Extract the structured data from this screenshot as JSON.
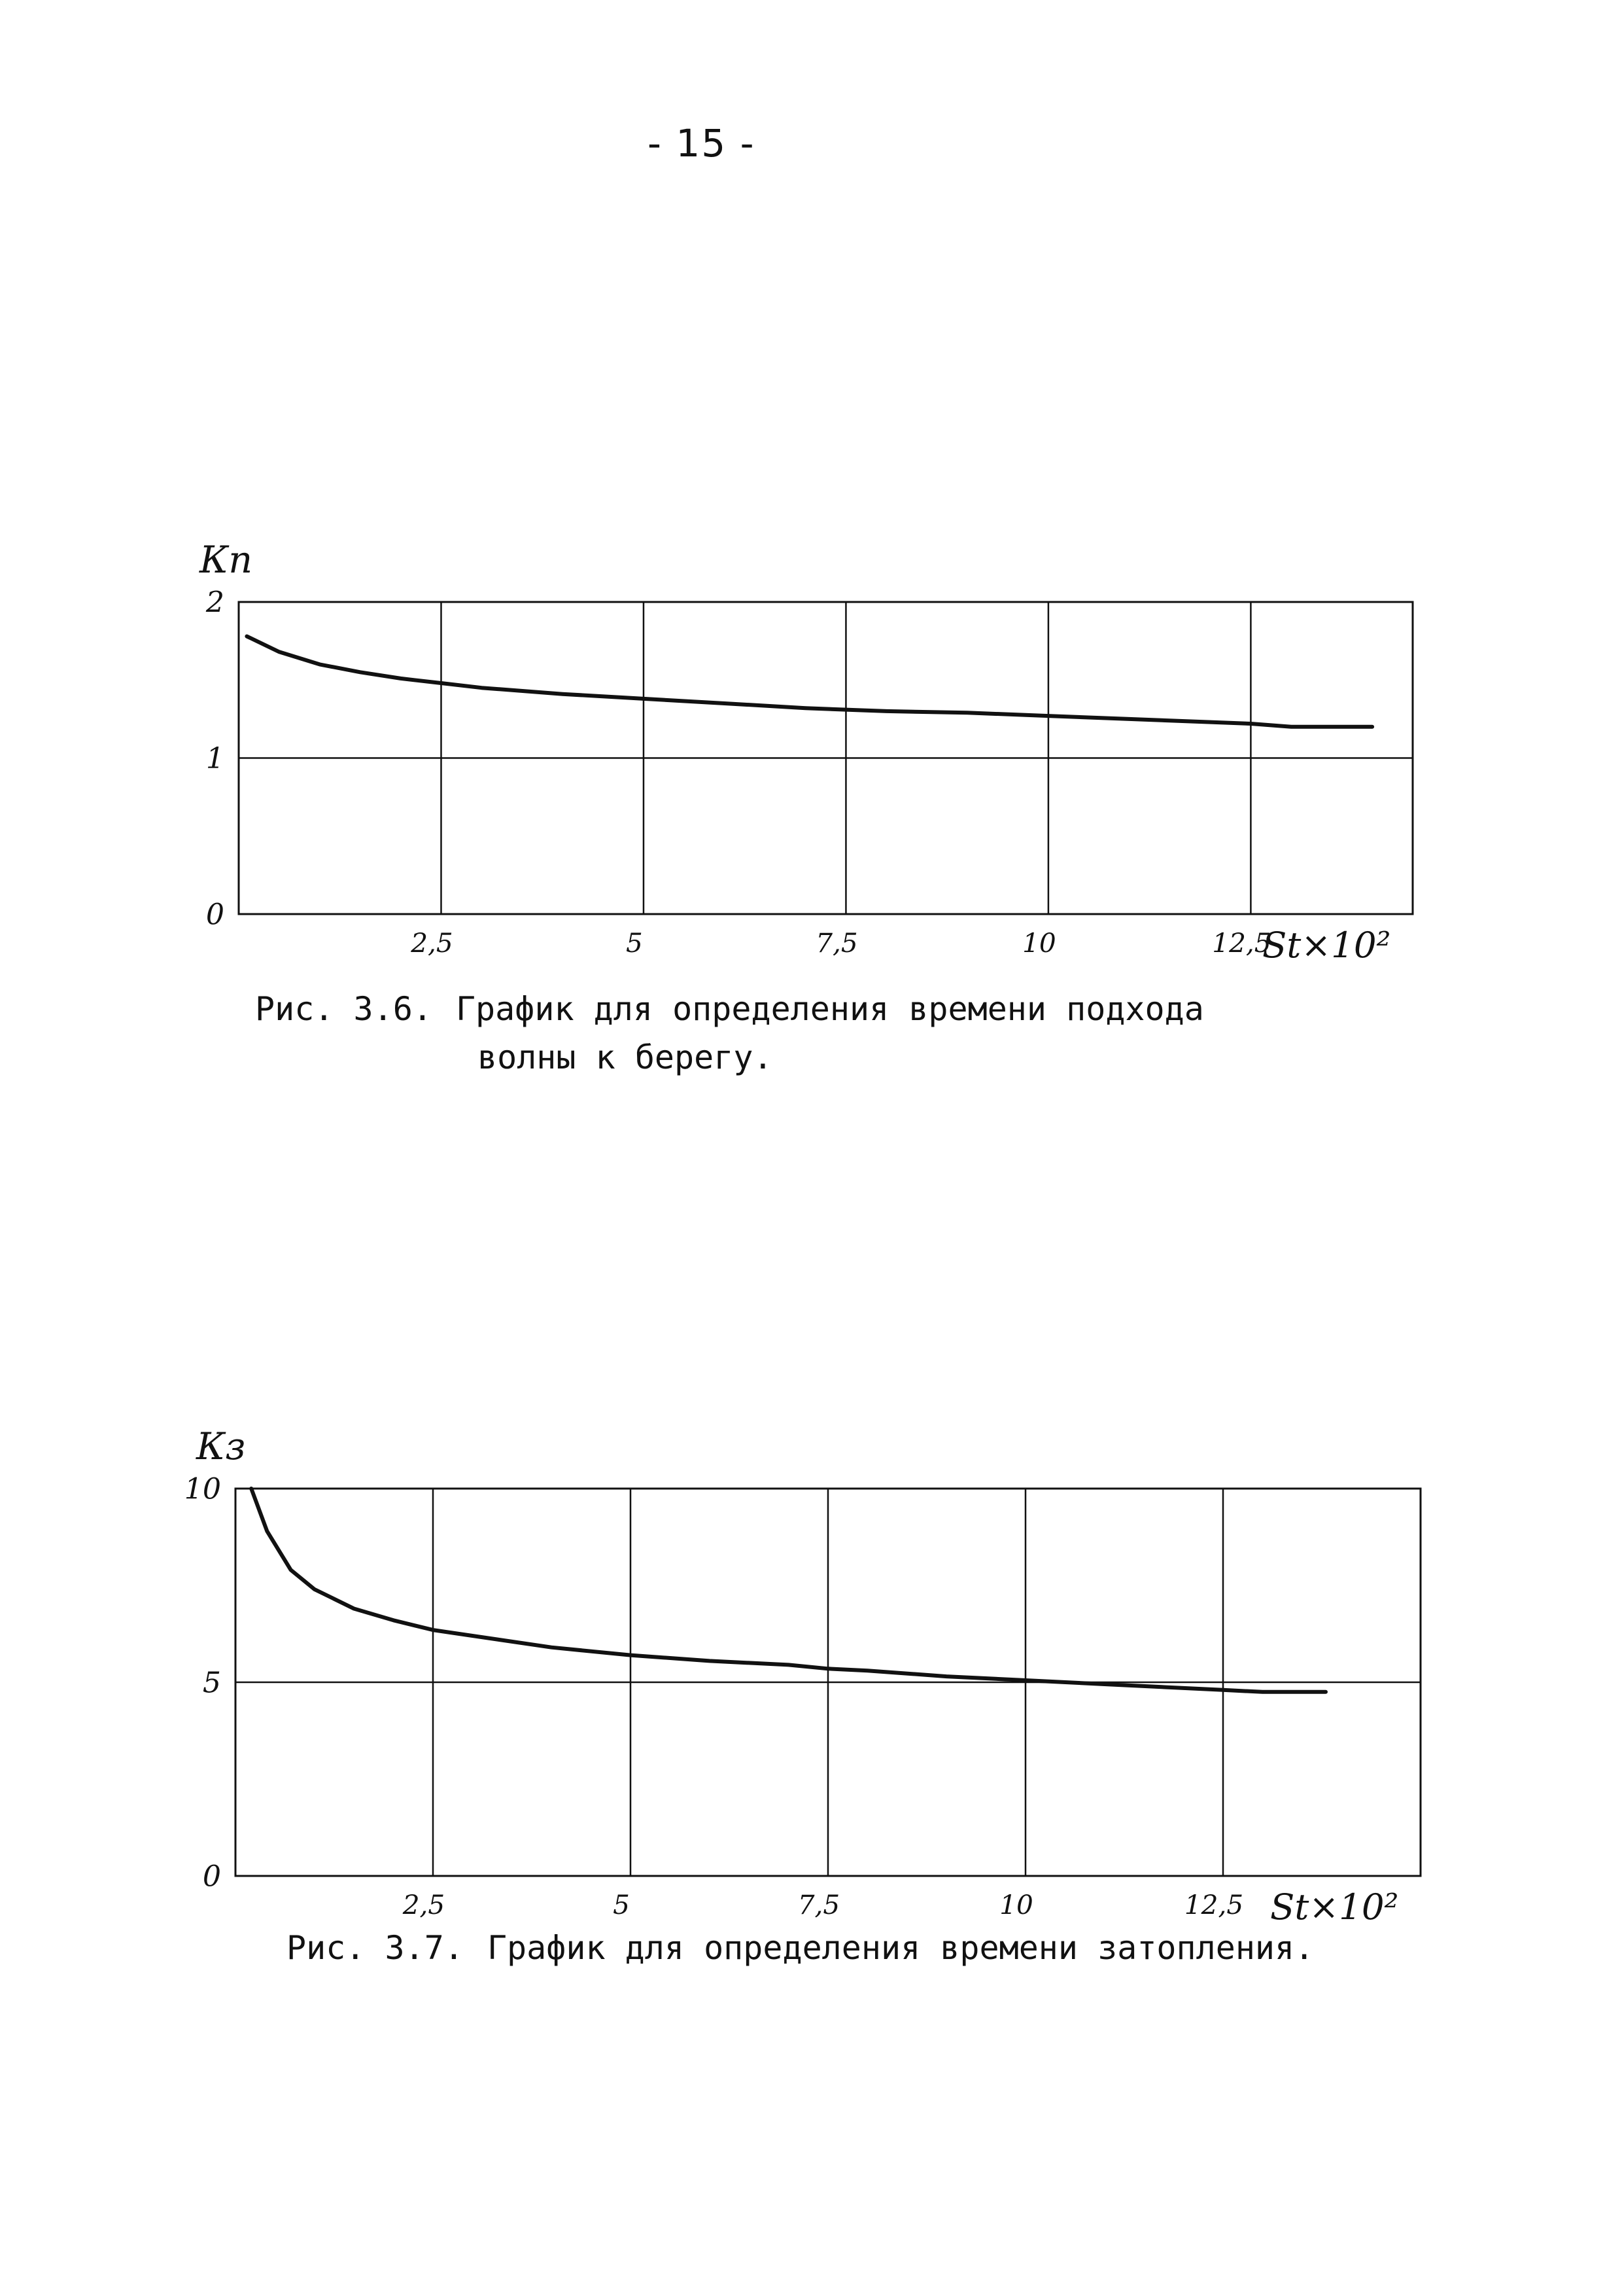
{
  "page_number": "- 15 -",
  "captions": [
    {
      "fig": "Рис. 3.6.",
      "line1": "График для определения времени подхода",
      "line2": "волны к берегу."
    },
    {
      "fig": "Рис. 3.7.",
      "line1": "График для определения времени затопления.",
      "line2": ""
    }
  ],
  "chart_data": [
    {
      "type": "line",
      "title": "",
      "ylabel": "Кп",
      "xlabel": "St×10²",
      "xlim": [
        0,
        14.5
      ],
      "ylim": [
        0,
        2
      ],
      "x_ticks": [
        2.5,
        5,
        7.5,
        10,
        12.5
      ],
      "x_tick_labels": [
        "2,5",
        "5",
        "7,5",
        "10",
        "12,5"
      ],
      "y_ticks": [
        0,
        1,
        2
      ],
      "y_tick_labels": [
        "0",
        "1",
        "2"
      ],
      "grid": true,
      "color": "#111111",
      "series": [
        {
          "x": [
            0.1,
            0.5,
            1,
            1.5,
            2,
            2.5,
            3,
            4,
            5,
            6,
            7,
            7.5,
            8,
            9,
            10,
            11,
            12,
            12.5,
            13,
            14
          ],
          "y": [
            1.78,
            1.68,
            1.6,
            1.55,
            1.51,
            1.48,
            1.45,
            1.41,
            1.38,
            1.35,
            1.32,
            1.31,
            1.3,
            1.29,
            1.27,
            1.25,
            1.23,
            1.22,
            1.2,
            1.2
          ]
        }
      ]
    },
    {
      "type": "line",
      "title": "",
      "ylabel": "Кз",
      "xlabel": "St×10²",
      "xlim": [
        0,
        15
      ],
      "ylim": [
        0,
        10
      ],
      "x_ticks": [
        2.5,
        5,
        7.5,
        10,
        12.5
      ],
      "x_tick_labels": [
        "2,5",
        "5",
        "7,5",
        "10",
        "12,5"
      ],
      "y_ticks": [
        0,
        5,
        10
      ],
      "y_tick_labels": [
        "0",
        "5",
        "10"
      ],
      "grid": true,
      "color": "#111111",
      "series": [
        {
          "x": [
            0.2,
            0.4,
            0.7,
            1,
            1.5,
            2,
            2.5,
            3,
            4,
            5,
            6,
            7,
            7.5,
            8,
            9,
            10,
            11,
            12,
            12.5,
            13,
            13.8
          ],
          "y": [
            10,
            8.9,
            7.9,
            7.4,
            6.9,
            6.6,
            6.35,
            6.2,
            5.9,
            5.7,
            5.55,
            5.45,
            5.35,
            5.3,
            5.15,
            5.05,
            4.95,
            4.85,
            4.8,
            4.75,
            4.75
          ]
        }
      ]
    }
  ]
}
